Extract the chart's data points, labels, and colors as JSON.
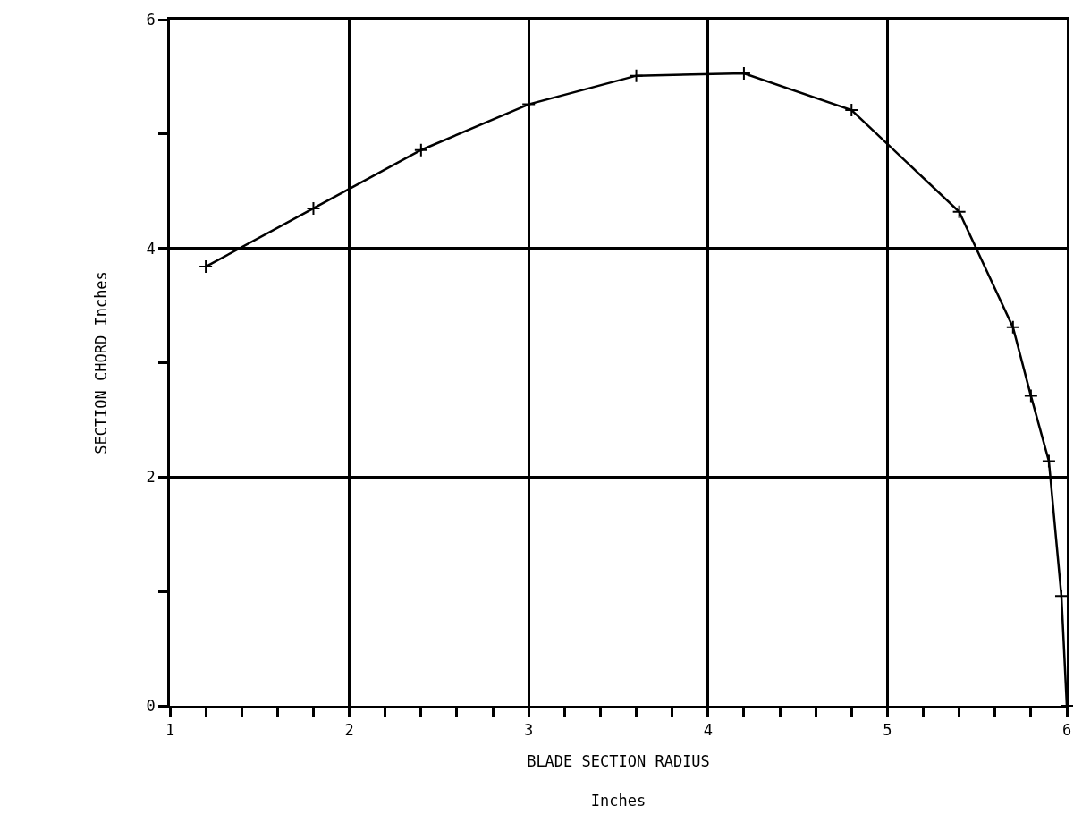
{
  "chart_data": {
    "type": "line",
    "xlabel": "BLADE SECTION RADIUS\nInches",
    "ylabel": "SECTION CHORD Inches",
    "x": [
      1.2,
      1.8,
      2.4,
      3.0,
      3.6,
      4.2,
      4.8,
      5.4,
      5.7,
      5.8,
      5.9,
      5.97,
      6.0
    ],
    "series": [
      {
        "color": "#000000",
        "values": [
          3.84,
          4.35,
          4.86,
          5.26,
          5.51,
          5.53,
          5.21,
          4.32,
          3.31,
          2.71,
          2.14,
          0.96,
          0
        ]
      }
    ],
    "xlim": [
      1,
      6
    ],
    "ylim": [
      0,
      6
    ],
    "xticks": [
      1,
      {
        "value": 1.2,
        "label": null
      },
      {
        "value": 1.4,
        "label": null
      },
      {
        "value": 1.6,
        "label": null
      },
      {
        "value": 1.8,
        "label": null
      },
      2,
      {
        "value": 2.2,
        "label": null
      },
      {
        "value": 2.4,
        "label": null
      },
      {
        "value": 2.6,
        "label": null
      },
      {
        "value": 2.8,
        "label": null
      },
      3,
      {
        "value": 3.2,
        "label": null
      },
      {
        "value": 3.4,
        "label": null
      },
      {
        "value": 3.6,
        "label": null
      },
      {
        "value": 3.8,
        "label": null
      },
      4,
      {
        "value": 4.2,
        "label": null
      },
      {
        "value": 4.4,
        "label": null
      },
      {
        "value": 4.6,
        "label": null
      },
      {
        "value": 4.8,
        "label": null
      },
      5,
      {
        "value": 5.2,
        "label": null
      },
      {
        "value": 5.4,
        "label": null
      },
      {
        "value": 5.6,
        "label": null
      },
      {
        "value": 5.8,
        "label": null
      },
      6
    ],
    "yticks": [
      0,
      {
        "value": 1,
        "label": null
      },
      2,
      {
        "value": 3,
        "label": null
      },
      4,
      {
        "value": 5,
        "label": null
      },
      6
    ],
    "grid": true,
    "marker": "cross",
    "line_style": "solid",
    "legend": false
  }
}
